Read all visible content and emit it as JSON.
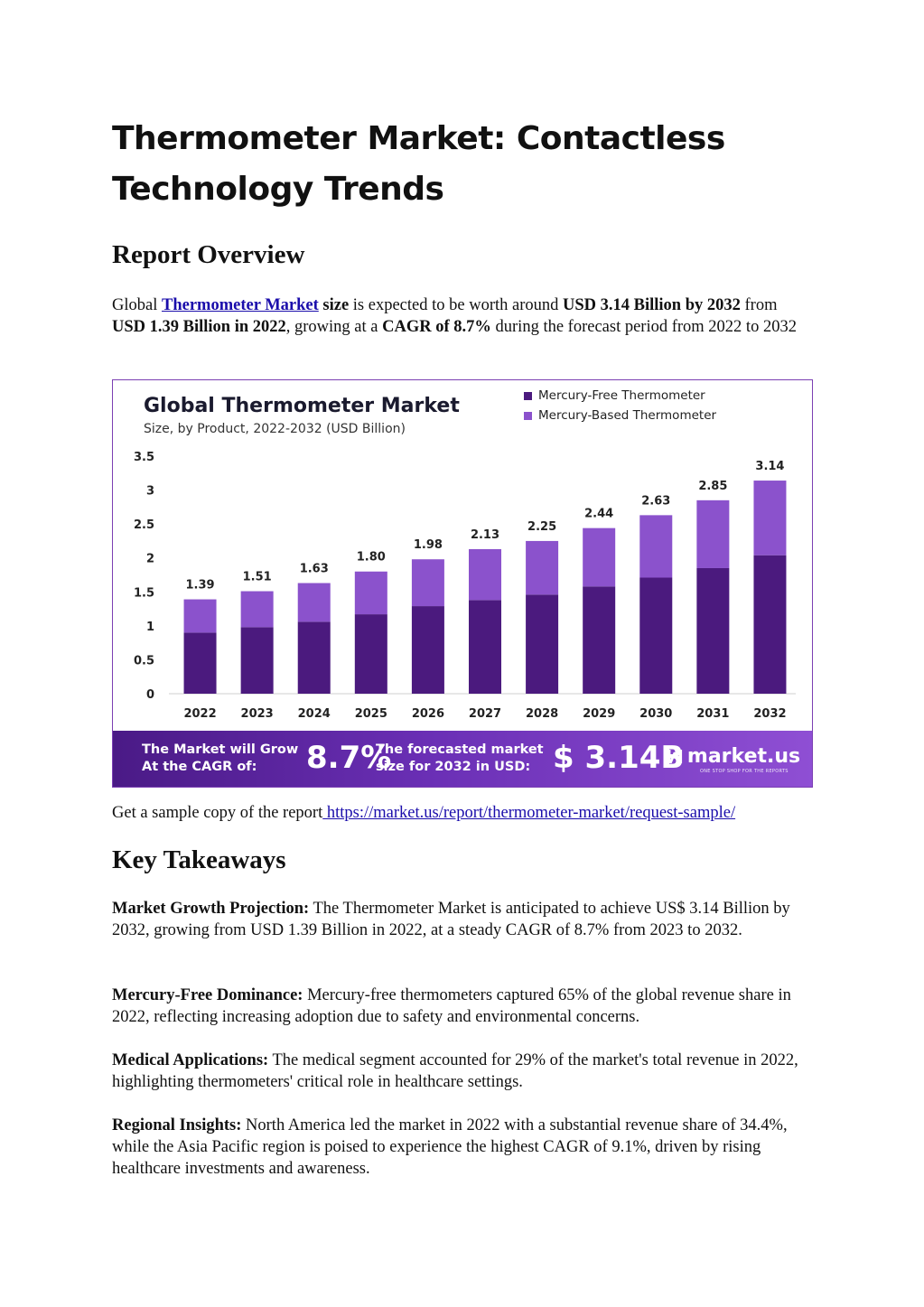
{
  "title": "Thermometer Market: Contactless Technology Trends",
  "overview": {
    "heading": "Report Overview",
    "p_global": "Global ",
    "p_link": "Thermometer Market",
    "p_size": " size",
    "p_mid1": " is expected to be worth around ",
    "p_b1": "USD 3.14 Billion by 2032",
    "p_mid2": " from ",
    "p_b2": "USD 1.39 Billion in 2022",
    "p_mid3": ", growing at a ",
    "p_b3": "CAGR of 8.7%",
    "p_end": " during the forecast period from 2022 to 2032"
  },
  "chart_data": {
    "type": "bar",
    "stacked": true,
    "title": "Global Thermometer Market",
    "subtitle": "Size, by Product, 2022-2032 (USD Billion)",
    "categories": [
      "2022",
      "2023",
      "2024",
      "2025",
      "2026",
      "2027",
      "2028",
      "2029",
      "2030",
      "2031",
      "2032"
    ],
    "series": [
      {
        "name": "Mercury-Free Thermometer",
        "color": "#4b1a7e",
        "values": [
          0.9,
          0.98,
          1.06,
          1.17,
          1.29,
          1.38,
          1.46,
          1.58,
          1.71,
          1.85,
          2.04
        ]
      },
      {
        "name": "Mercury-Based Thermometer",
        "color": "#8b52cc",
        "values": [
          0.49,
          0.53,
          0.57,
          0.63,
          0.69,
          0.75,
          0.79,
          0.86,
          0.92,
          1.0,
          1.1
        ]
      }
    ],
    "totals": [
      "1.39",
      "1.51",
      "1.63",
      "1.80",
      "1.98",
      "2.13",
      "2.25",
      "2.44",
      "2.63",
      "2.85",
      "3.14"
    ],
    "yticks": [
      "0",
      "0.5",
      "1",
      "1.5",
      "2",
      "2.5",
      "3",
      "3.5"
    ],
    "ylim": [
      0,
      3.5
    ],
    "grid": false,
    "legend_position": "top-right"
  },
  "banner": {
    "label1": "The Market will Grow At the CAGR of:",
    "value1": "8.7%",
    "label2": "The forecasted market size for 2032 in USD:",
    "value2": "$ 3.14B",
    "logo_mark": "ꟽ",
    "logo_text": "market.us",
    "logo_tagline": "ONE STOP SHOP FOR THE REPORTS"
  },
  "sample": {
    "text": "Get a sample copy of the report",
    "link": " https://market.us/report/thermometer-market/request-sample/ "
  },
  "takeaways": {
    "heading": "Key Takeaways",
    "items": [
      {
        "label": "Market Growth Projection:",
        "text": " The Thermometer Market is anticipated to achieve US$ 3.14 Billion by 2032, growing from USD 1.39 Billion in 2022, at a steady CAGR of 8.7% from 2023 to 2032."
      },
      {
        "label": "Mercury-Free Dominance:",
        "text": " Mercury-free thermometers captured 65% of the global revenue share in 2022, reflecting increasing adoption due to safety and environmental concerns."
      },
      {
        "label": "Medical Applications:",
        "text": " The medical segment accounted for 29% of the market's total revenue in 2022, highlighting thermometers' critical role in healthcare settings."
      },
      {
        "label": "Regional Insights:",
        "text": " North America led the market in 2022 with a substantial revenue share of 34.4%, while the Asia Pacific region is poised to experience the highest CAGR of 9.1%, driven by rising healthcare investments and awareness."
      }
    ]
  }
}
